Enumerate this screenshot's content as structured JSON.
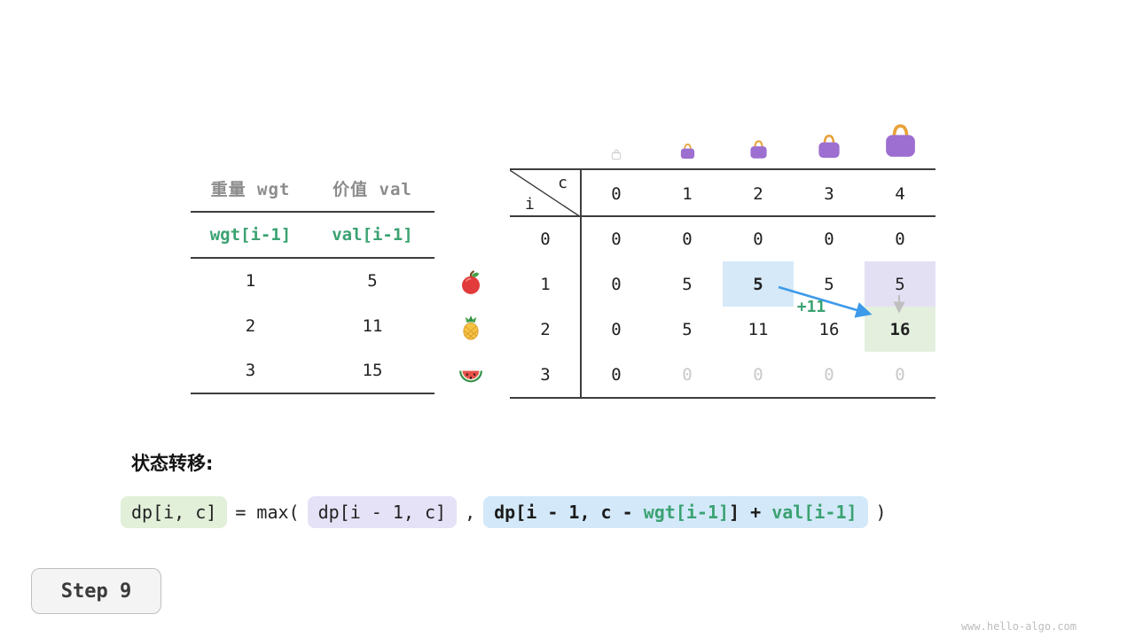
{
  "meta": {
    "step_label": "Step 9",
    "watermark": "www.hello-algo.com"
  },
  "item_table": {
    "col_headers": [
      "重量 wgt",
      "价值 val"
    ],
    "formula_row": [
      "wgt[i-1]",
      "val[i-1]"
    ],
    "rows": [
      {
        "icon": "apple-icon",
        "wgt": "1",
        "val": "5"
      },
      {
        "icon": "pineapple-icon",
        "wgt": "2",
        "val": "11"
      },
      {
        "icon": "watermelon-icon",
        "wgt": "3",
        "val": "15"
      }
    ]
  },
  "dp_table": {
    "corner": {
      "row_var": "i",
      "col_var": "c"
    },
    "col_headers": [
      "0",
      "1",
      "2",
      "3",
      "4"
    ],
    "col_icons": [
      "bag-icon-empty",
      "bag-icon-small",
      "bag-icon-medium",
      "bag-icon-large",
      "bag-icon-xlarge"
    ],
    "rows": [
      {
        "label": "0",
        "cells": [
          "0",
          "0",
          "0",
          "0",
          "0"
        ]
      },
      {
        "label": "1",
        "cells": [
          "0",
          "5",
          "5",
          "5",
          "5"
        ]
      },
      {
        "label": "2",
        "cells": [
          "0",
          "5",
          "11",
          "16",
          "16"
        ]
      },
      {
        "label": "3",
        "cells": [
          "0",
          "0",
          "0",
          "0",
          "0"
        ]
      }
    ],
    "highlights": [
      {
        "row": 1,
        "col": 2,
        "color": "blue",
        "bold": true
      },
      {
        "row": 1,
        "col": 4,
        "color": "purple",
        "bold": false
      },
      {
        "row": 2,
        "col": 4,
        "color": "green",
        "bold": true
      }
    ],
    "dimmed_cells": [
      {
        "row": 3,
        "cols": [
          1,
          2,
          3,
          4
        ]
      }
    ],
    "transition_label": "+11"
  },
  "transition": {
    "heading": "状态转移:",
    "lhs": "dp[i, c]",
    "operator": "= max(",
    "arg1": "dp[i - 1, c]",
    "separator": ",",
    "arg2": {
      "prefix": "dp[i - 1, c - ",
      "wgt_term": "wgt[i-1]",
      "middle": "] + ",
      "val_term": "val[i-1]"
    },
    "closing": ")"
  },
  "colors": {
    "accent_green": "#3BA272",
    "arrow_blue": "#3D9BE9",
    "highlight_blue": "#D6E9F8",
    "highlight_purple": "#E4E0F4",
    "highlight_green": "#E4EFDE",
    "formula_green_bg": "#E2EFD9",
    "formula_purple_bg": "#E5E1F6",
    "formula_blue_bg": "#D3E9F9",
    "bag_purple": "#9D6FD0",
    "bag_handle": "#E9A23B"
  }
}
